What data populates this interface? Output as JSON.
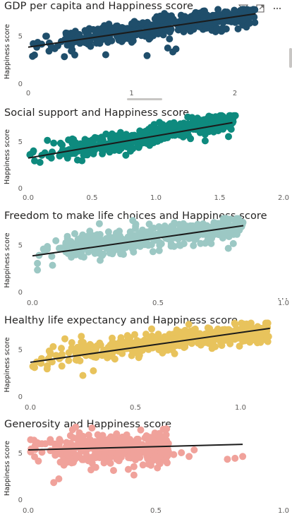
{
  "icons": {
    "filter": "filter-icon",
    "focus": "focus-mode-icon",
    "more": "more-options-icon"
  },
  "more_options_label": "...",
  "chart_data": [
    {
      "type": "scatter",
      "title": "GDP per capita and Happiness score",
      "ylabel": "Happiness score",
      "xlabel": "",
      "xlim": [
        0,
        2.4
      ],
      "ylim": [
        0,
        8
      ],
      "xticks": [
        "0",
        "1",
        "2"
      ],
      "xtick_values": [
        0,
        1,
        2
      ],
      "yticks": [
        "0",
        "5"
      ],
      "ytick_values": [
        0,
        5
      ],
      "color": "#1f4e6b",
      "trend": {
        "x": [
          0,
          2.2
        ],
        "y": [
          3.8,
          7.3
        ]
      },
      "cloud": {
        "x_min": 0.02,
        "x_max": 2.2,
        "y_at_min": 3.9,
        "y_at_max": 7.3,
        "spread": 1.0
      },
      "outliers": [
        [
          1.35,
          3.7
        ],
        [
          1.4,
          3.3
        ],
        [
          0.75,
          3.0
        ],
        [
          1.15,
          2.9
        ],
        [
          0.35,
          2.8
        ],
        [
          1.43,
          3.6
        ]
      ]
    },
    {
      "type": "scatter",
      "title": "Social support and Happiness score",
      "ylabel": "Happiness score",
      "xlabel": "",
      "xlim": [
        0,
        2.0
      ],
      "ylim": [
        0,
        8
      ],
      "xticks": [
        "0.0",
        "0.5",
        "1.0",
        "1.5",
        "2.0"
      ],
      "xtick_values": [
        0,
        0.5,
        1.0,
        1.5,
        2.0
      ],
      "yticks": [
        "0",
        "5"
      ],
      "ytick_values": [
        0,
        5
      ],
      "color": "#0e8a7e",
      "trend": {
        "x": [
          0,
          1.6
        ],
        "y": [
          3.2,
          7.0
        ]
      },
      "cloud": {
        "x_min": 0.0,
        "x_max": 1.63,
        "y_at_min": 3.3,
        "y_at_max": 7.2,
        "spread": 1.0
      },
      "outliers": [
        [
          0.05,
          2.9
        ],
        [
          0.3,
          4.0
        ],
        [
          0.2,
          4.8
        ],
        [
          0.15,
          5.1
        ],
        [
          0.45,
          4.2
        ]
      ]
    },
    {
      "type": "scatter",
      "title": "Freedom to make life choices and Happiness score",
      "ylabel": "Happiness score",
      "xlabel": "",
      "xlim": [
        0,
        1.0
      ],
      "ylim": [
        0,
        8
      ],
      "xticks": [
        "0.0",
        "0.5",
        "1.0"
      ],
      "xtick_values": [
        0,
        0.5,
        1.0
      ],
      "yticks": [
        "0",
        "5"
      ],
      "ytick_values": [
        0,
        5
      ],
      "color": "#9cc8c4",
      "trend": {
        "x": [
          0,
          0.84
        ],
        "y": [
          3.8,
          7.0
        ]
      },
      "cloud": {
        "x_min": 0.0,
        "x_max": 0.84,
        "y_at_min": 4.2,
        "y_at_max": 7.0,
        "spread": 1.1
      },
      "outliers": [
        [
          0.02,
          2.3
        ],
        [
          0.08,
          2.8
        ],
        [
          0.78,
          4.6
        ],
        [
          0.8,
          5.1
        ],
        [
          0.02,
          3.0
        ]
      ]
    },
    {
      "type": "scatter",
      "title": "Healthy life expectancy and Happiness score",
      "ylabel": "Happiness score",
      "xlabel": "",
      "xlim": [
        0,
        1.2
      ],
      "ylim": [
        0,
        8
      ],
      "xticks": [
        "0.0",
        "0.5",
        "1.0"
      ],
      "xtick_values": [
        0,
        0.5,
        1.0
      ],
      "yticks": [
        "0",
        "5"
      ],
      "ytick_values": [
        0,
        5
      ],
      "color": "#e8c35c",
      "trend": {
        "x": [
          0,
          1.14
        ],
        "y": [
          3.6,
          7.2
        ]
      },
      "cloud": {
        "x_min": 0.0,
        "x_max": 1.14,
        "y_at_min": 4.1,
        "y_at_max": 7.0,
        "spread": 1.0
      },
      "outliers": [
        [
          0.08,
          2.9
        ],
        [
          0.25,
          2.2
        ],
        [
          0.3,
          2.7
        ],
        [
          0.15,
          3.2
        ],
        [
          1.13,
          5.8
        ]
      ]
    },
    {
      "type": "scatter",
      "title": "Generosity and Happiness score",
      "ylabel": "Happiness score",
      "xlabel": "",
      "xlim": [
        0,
        1.0
      ],
      "ylim": [
        0,
        8
      ],
      "xticks": [
        "0.0",
        "0.5",
        "1.0"
      ],
      "xtick_values": [
        0,
        0.5,
        1.0
      ],
      "yticks": [
        "0",
        "5"
      ],
      "ytick_values": [
        0,
        5
      ],
      "color": "#f0a29b",
      "trend": {
        "x": [
          0,
          0.84
        ],
        "y": [
          5.3,
          5.9
        ]
      },
      "cloud": {
        "x_min": 0.0,
        "x_max": 0.55,
        "y_at_min": 5.4,
        "y_at_max": 5.4,
        "spread": 1.5
      },
      "outliers": [
        [
          0.6,
          5.0
        ],
        [
          0.63,
          4.6
        ],
        [
          0.57,
          4.8
        ],
        [
          0.81,
          4.4
        ],
        [
          0.84,
          4.6
        ],
        [
          0.78,
          4.3
        ],
        [
          0.65,
          5.3
        ],
        [
          0.12,
          2.2
        ],
        [
          0.1,
          1.8
        ]
      ]
    }
  ]
}
